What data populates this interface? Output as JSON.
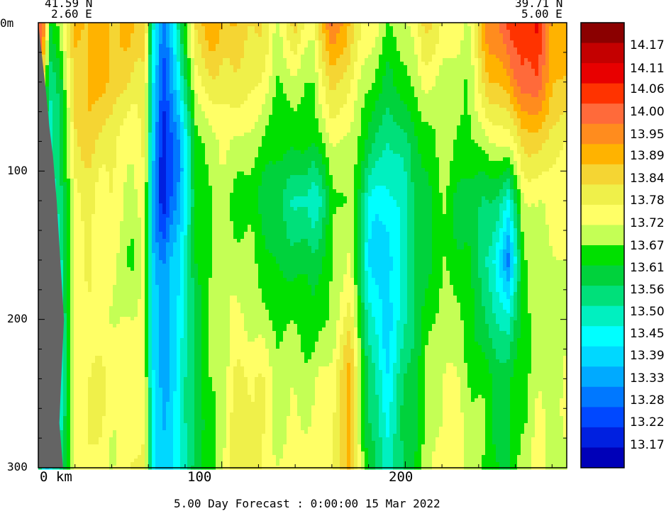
{
  "header": {
    "left_lat": "41.59 N",
    "left_lon": "2.60 E",
    "right_lat": "39.71 N",
    "right_lon": "5.00 E"
  },
  "footer": {
    "caption": "5.00 Day Forecast :  0:00:00  15 Mar 2022"
  },
  "chart_data": {
    "type": "heatmap",
    "title": "5.00 Day Forecast :  0:00:00  15 Mar 2022",
    "x_axis": {
      "ticks": [
        0,
        100,
        200
      ],
      "tick_labels": [
        "0 km",
        "100",
        "200"
      ],
      "range": [
        0,
        288
      ]
    },
    "y_axis": {
      "ticks": [
        0,
        100,
        200,
        300
      ],
      "tick_labels": [
        "0m",
        "100",
        "200",
        "300"
      ],
      "range": [
        0,
        300
      ],
      "inverted": true
    },
    "colorbar": {
      "labels": [
        "14.17",
        "14.11",
        "14.06",
        "14.00",
        "13.95",
        "13.89",
        "13.84",
        "13.78",
        "13.72",
        "13.67",
        "13.61",
        "13.56",
        "13.50",
        "13.45",
        "13.39",
        "13.33",
        "13.28",
        "13.22",
        "13.17"
      ],
      "colors": [
        "#8b0000",
        "#c40000",
        "#e80000",
        "#ff3300",
        "#ff6a3a",
        "#ff8c1e",
        "#ffb300",
        "#f5d533",
        "#eff04a",
        "#ffff66",
        "#c4ff55",
        "#00e000",
        "#00d23c",
        "#00e07a",
        "#00f0c0",
        "#00ffff",
        "#00d8ff",
        "#00aaff",
        "#0078ff",
        "#0048ff",
        "#0020e0",
        "#0000b8"
      ]
    },
    "temperature_anchors": {
      "columns_km": [
        0,
        3,
        6,
        12,
        20,
        28,
        40,
        52,
        58,
        62,
        68,
        76,
        86,
        96,
        108,
        120,
        130,
        140,
        150,
        160,
        170,
        180,
        190,
        200,
        210,
        222,
        234,
        246,
        256,
        264,
        272,
        280,
        288
      ],
      "rows_m": [
        0,
        40,
        80,
        120,
        160,
        200,
        240,
        300
      ],
      "values": [
        [
          14.08,
          14.0,
          13.84,
          13.72,
          13.66,
          13.62,
          13.62,
          13.6
        ],
        [
          13.96,
          13.78,
          13.6,
          13.5,
          13.46,
          13.44,
          13.44,
          13.42
        ],
        [
          13.6,
          13.52,
          13.5,
          13.46,
          13.42,
          13.4,
          13.4,
          13.4
        ],
        [
          13.72,
          13.62,
          13.56,
          13.52,
          13.5,
          13.48,
          13.48,
          13.55
        ],
        [
          13.9,
          13.86,
          13.82,
          13.78,
          13.75,
          13.74,
          13.74,
          13.74
        ],
        [
          13.92,
          13.9,
          13.86,
          13.8,
          13.77,
          13.78,
          13.8,
          13.78
        ],
        [
          13.9,
          13.88,
          13.8,
          13.76,
          13.74,
          13.74,
          13.76,
          13.74
        ],
        [
          13.88,
          13.82,
          13.74,
          13.7,
          13.68,
          13.72,
          13.76,
          13.78
        ],
        [
          13.9,
          13.84,
          13.78,
          13.74,
          13.74,
          13.74,
          13.78,
          13.8
        ],
        [
          13.48,
          13.44,
          13.4,
          13.4,
          13.39,
          13.4,
          13.42,
          13.42
        ],
        [
          13.3,
          13.22,
          13.14,
          13.16,
          13.28,
          13.34,
          13.34,
          13.36
        ],
        [
          13.52,
          13.4,
          13.3,
          13.32,
          13.4,
          13.42,
          13.42,
          13.44
        ],
        [
          13.86,
          13.76,
          13.66,
          13.6,
          13.62,
          13.6,
          13.6,
          13.62
        ],
        [
          13.92,
          13.84,
          13.72,
          13.7,
          13.72,
          13.7,
          13.68,
          13.66
        ],
        [
          13.88,
          13.82,
          13.72,
          13.68,
          13.7,
          13.74,
          13.8,
          13.82
        ],
        [
          13.86,
          13.78,
          13.7,
          13.62,
          13.66,
          13.72,
          13.78,
          13.8
        ],
        [
          13.72,
          13.68,
          13.64,
          13.56,
          13.62,
          13.66,
          13.7,
          13.74
        ],
        [
          13.84,
          13.72,
          13.64,
          13.52,
          13.62,
          13.66,
          13.72,
          13.76
        ],
        [
          13.76,
          13.68,
          13.62,
          13.48,
          13.58,
          13.64,
          13.72,
          13.74
        ],
        [
          14.04,
          13.86,
          13.74,
          13.64,
          13.66,
          13.7,
          13.76,
          13.8
        ],
        [
          13.86,
          13.78,
          13.74,
          13.7,
          13.76,
          13.82,
          13.9,
          13.9
        ],
        [
          13.76,
          13.7,
          13.6,
          13.46,
          13.42,
          13.48,
          13.56,
          13.6
        ],
        [
          13.7,
          13.62,
          13.5,
          13.44,
          13.36,
          13.38,
          13.44,
          13.48
        ],
        [
          13.72,
          13.64,
          13.56,
          13.52,
          13.5,
          13.52,
          13.56,
          13.58
        ],
        [
          13.84,
          13.74,
          13.66,
          13.6,
          13.62,
          13.64,
          13.66,
          13.7
        ],
        [
          13.78,
          13.72,
          13.7,
          13.66,
          13.68,
          13.7,
          13.76,
          13.78
        ],
        [
          13.74,
          13.68,
          13.64,
          13.6,
          13.62,
          13.66,
          13.7,
          13.72
        ],
        [
          14.0,
          13.88,
          13.74,
          13.58,
          13.5,
          13.56,
          13.62,
          13.66
        ],
        [
          14.04,
          13.92,
          13.76,
          13.46,
          13.3,
          13.48,
          13.58,
          13.62
        ],
        [
          14.08,
          14.06,
          13.84,
          13.7,
          13.66,
          13.64,
          13.68,
          13.7
        ],
        [
          14.1,
          14.04,
          13.86,
          13.76,
          13.72,
          13.7,
          13.72,
          13.74
        ],
        [
          13.96,
          13.9,
          13.8,
          13.74,
          13.7,
          13.7,
          13.7,
          13.72
        ],
        [
          13.92,
          13.86,
          13.8,
          13.76,
          13.74,
          13.72,
          13.72,
          13.72
        ]
      ]
    },
    "land_mask": {
      "color": "#646464",
      "depth_m": [
        0,
        50,
        70,
        90,
        120,
        160,
        200,
        240,
        270,
        300
      ],
      "edge_km": [
        0,
        4.5,
        6,
        8,
        10,
        12,
        14,
        12.5,
        11.5,
        13.5
      ]
    }
  }
}
